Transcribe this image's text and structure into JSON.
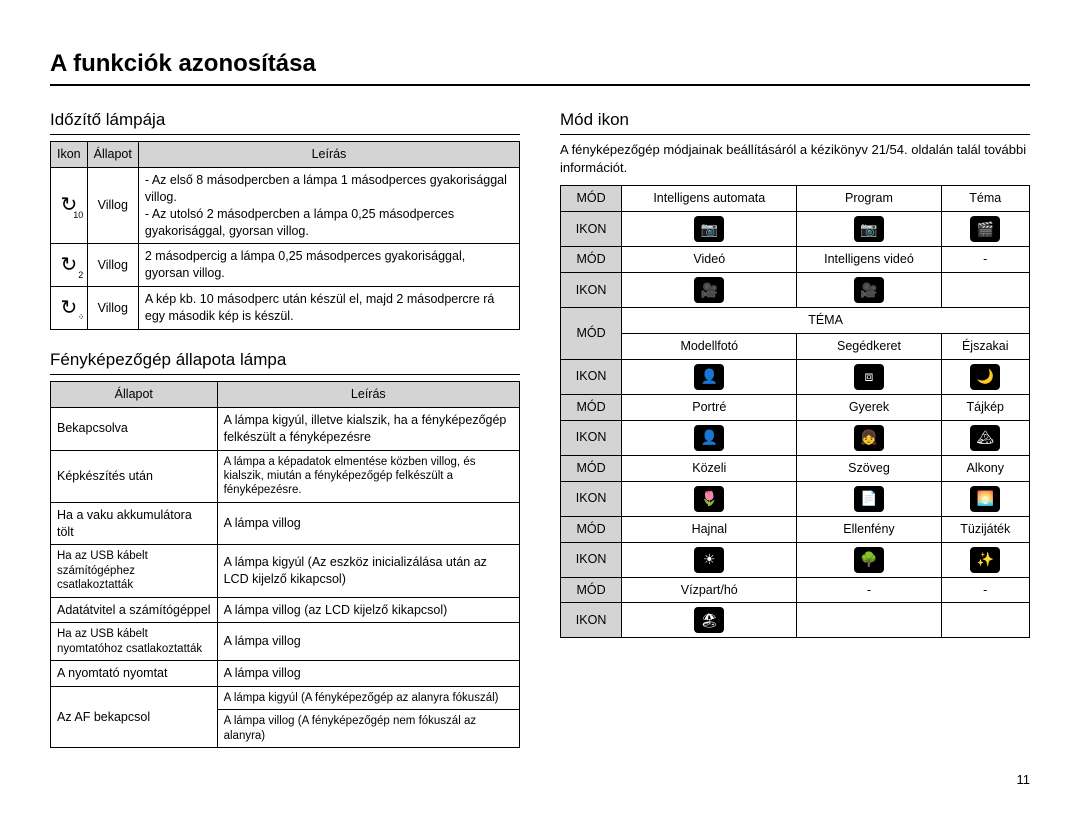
{
  "page_title": "A funkciók azonosítása",
  "page_number": "11",
  "left": {
    "timer": {
      "heading": "Időzítő lámpája",
      "headers": [
        "Ikon",
        "Állapot",
        "Leírás"
      ],
      "rows": [
        {
          "icon_sub": "10",
          "status": "Villog",
          "desc": "- Az első 8 másodpercben a lámpa 1 másodperces gyakorisággal villog.\n- Az utolsó 2 másodpercben a lámpa 0,25 másodperces gyakorisággal, gyorsan villog."
        },
        {
          "icon_sub": "2",
          "status": "Villog",
          "desc": "2 másodpercig a lámpa 0,25 másodperces gyakorisággal, gyorsan villog."
        },
        {
          "icon_sub": "᠅",
          "status": "Villog",
          "desc": "A kép kb. 10 másodperc után készül el, majd 2 másodpercre rá egy második kép is készül."
        }
      ]
    },
    "status": {
      "heading": "Fényképezőgép állapota lámpa",
      "headers": [
        "Állapot",
        "Leírás"
      ],
      "rows": [
        {
          "s": "Bekapcsolva",
          "d": "A lámpa kigyúl, illetve kialszik, ha a fényképezőgép felkészült a fényképezésre"
        },
        {
          "s": "Képkészítés után",
          "d": "A lámpa a képadatok elmentése közben villog, és kialszik, miután a fényképezőgép felkészült a fényképezésre.",
          "small": true
        },
        {
          "s": "Ha a vaku akkumulátora tölt",
          "d": "A lámpa villog"
        },
        {
          "s": "Ha az USB kábelt számítógéphez csatlakoztatták",
          "d": "A lámpa kigyúl (Az eszköz inicializálása után az LCD kijelző kikapcsol)",
          "ssmall": true
        },
        {
          "s": "Adatátvitel a számítógéppel",
          "d": "A lámpa villog (az LCD kijelző kikapcsol)"
        },
        {
          "s": "Ha az USB kábelt nyomtatóhoz csatlakoztatták",
          "d": "A lámpa villog",
          "ssmall": true
        },
        {
          "s": "A nyomtató nyomtat",
          "d": "A lámpa villog"
        },
        {
          "s": "Az AF bekapcsol",
          "d1": "A lámpa kigyúl (A fényképezőgép az alanyra fókuszál)",
          "d2": "A lámpa villog (A fényképezőgép nem fókuszál az alanyra)",
          "d1small": true,
          "d2small": true
        }
      ]
    }
  },
  "right": {
    "heading": "Mód ikon",
    "note": "A fényképezőgép módjainak beállításáról a kézikönyv 21/54. oldalán talál további információt.",
    "labels": {
      "mod": "MÓD",
      "ikon": "IKON",
      "tema": "TÉMA"
    },
    "row1": {
      "c1": "Intelligens automata",
      "c2": "Program",
      "c3": "Téma",
      "i1": "📷",
      "i2": "📷",
      "i3": "🎬"
    },
    "row2": {
      "c1": "Videó",
      "c2": "Intelligens videó",
      "c3": "-",
      "i1": "🎥",
      "i2": "🎥",
      "i3": ""
    },
    "theme_rows": [
      {
        "m": [
          "Modellfotó",
          "Segédkeret",
          "Éjszakai"
        ],
        "i": [
          "👤",
          "⧈",
          "🌙"
        ]
      },
      {
        "m": [
          "Portré",
          "Gyerek",
          "Tájkép"
        ],
        "i": [
          "👤",
          "👧",
          "🏔"
        ]
      },
      {
        "m": [
          "Közeli",
          "Szöveg",
          "Alkony"
        ],
        "i": [
          "🌷",
          "📄",
          "🌅"
        ]
      },
      {
        "m": [
          "Hajnal",
          "Ellenfény",
          "Tüzijáték"
        ],
        "i": [
          "☀",
          "🌳",
          "✨"
        ]
      },
      {
        "m": [
          "Vízpart/hó",
          "-",
          "-"
        ],
        "i": [
          "🏖",
          "",
          ""
        ]
      }
    ]
  }
}
